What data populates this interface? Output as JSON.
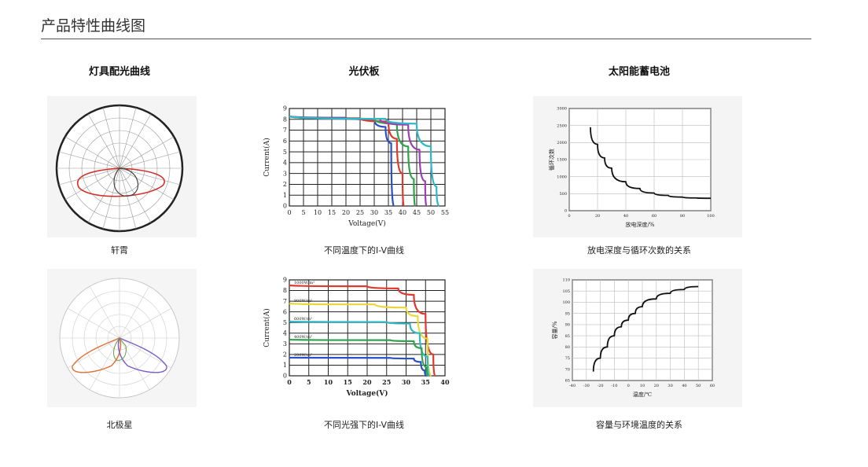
{
  "page": {
    "title": "产品特性曲线图"
  },
  "columns": [
    {
      "heading": "灯具配光曲线"
    },
    {
      "heading": "光伏板"
    },
    {
      "heading": "太阳能蓄电池"
    }
  ],
  "captions": {
    "polar1": "轩霄",
    "polar2": "北极星",
    "iv_temp": "不同温度下的I-V曲线",
    "iv_light": "不同光强下的I-V曲线",
    "cycle": "放电深度与循环次数的关系",
    "capacity": "容量与环境温度的关系"
  },
  "colors": {
    "red": "#e03a2f",
    "blue": "#2a4fc6",
    "green": "#2fa34a",
    "purple": "#9b3fb5",
    "cyan": "#2fb8c6",
    "yellow": "#e8d83a",
    "orange": "#e0703a"
  },
  "chart_data": [
    {
      "type": "line",
      "title": "不同温度下的I-V曲线",
      "xlabel": "Voltage(V)",
      "ylabel": "Current(A)",
      "xlim": [
        0,
        55
      ],
      "ylim": [
        0,
        9
      ],
      "x_ticks": [
        "0",
        "5",
        "10",
        "15",
        "20",
        "25",
        "30",
        "35",
        "40",
        "45",
        "50",
        "55"
      ],
      "y_ticks": [
        "0",
        "1",
        "2",
        "3",
        "4",
        "5",
        "6",
        "7",
        "8",
        "9"
      ],
      "series": [
        {
          "color": "#2a4fc6",
          "points": [
            [
              0,
              8.3
            ],
            [
              20,
              8.15
            ],
            [
              30,
              8.0
            ],
            [
              34,
              7.3
            ],
            [
              36,
              5.8
            ],
            [
              37,
              0
            ]
          ]
        },
        {
          "color": "#e03a2f",
          "points": [
            [
              0,
              8.3
            ],
            [
              25,
              8.1
            ],
            [
              35,
              7.8
            ],
            [
              38,
              6.2
            ],
            [
              40,
              3.0
            ],
            [
              40.5,
              0
            ]
          ]
        },
        {
          "color": "#2fa34a",
          "points": [
            [
              0,
              8.3
            ],
            [
              30,
              8.05
            ],
            [
              38,
              7.6
            ],
            [
              42,
              5.5
            ],
            [
              44,
              2.5
            ],
            [
              44.5,
              0
            ]
          ]
        },
        {
          "color": "#9b3fb5",
          "points": [
            [
              0,
              8.3
            ],
            [
              32,
              8.05
            ],
            [
              42,
              7.5
            ],
            [
              46,
              5.2
            ],
            [
              48,
              2.3
            ],
            [
              48.5,
              0
            ]
          ]
        },
        {
          "color": "#2fb8c6",
          "points": [
            [
              0,
              8.3
            ],
            [
              34,
              8.05
            ],
            [
              45,
              7.6
            ],
            [
              50,
              5.5
            ],
            [
              52,
              1.8
            ],
            [
              53,
              0
            ]
          ]
        }
      ]
    },
    {
      "type": "line",
      "title": "不同光强下的I-V曲线",
      "xlabel": "Voltage(V)",
      "ylabel": "Current(A)",
      "xlim": [
        0,
        40
      ],
      "ylim": [
        0,
        9
      ],
      "x_ticks": [
        "0",
        "5",
        "10",
        "15",
        "20",
        "25",
        "30",
        "35",
        "40"
      ],
      "y_ticks": [
        "0",
        "1",
        "2",
        "3",
        "4",
        "5",
        "6",
        "7",
        "8",
        "9"
      ],
      "series": [
        {
          "name": "1000W/m²",
          "color": "#e03a2f",
          "points": [
            [
              0,
              8.5
            ],
            [
              20,
              8.4
            ],
            [
              28,
              8.2
            ],
            [
              32,
              7.6
            ],
            [
              35,
              5.8
            ],
            [
              37,
              2.0
            ],
            [
              37.5,
              0
            ]
          ]
        },
        {
          "name": "800W/m²",
          "color": "#e8d83a",
          "points": [
            [
              0,
              6.8
            ],
            [
              22,
              6.7
            ],
            [
              30,
              6.4
            ],
            [
              33,
              5.6
            ],
            [
              35.5,
              3.5
            ],
            [
              36.5,
              0
            ]
          ]
        },
        {
          "name": "600W/m²",
          "color": "#2fb8c6",
          "points": [
            [
              0,
              5.1
            ],
            [
              25,
              5.05
            ],
            [
              31,
              4.9
            ],
            [
              33.5,
              4.0
            ],
            [
              35.5,
              1.8
            ],
            [
              36,
              0
            ]
          ]
        },
        {
          "name": "400W/m²",
          "color": "#2fa34a",
          "points": [
            [
              0,
              3.4
            ],
            [
              26,
              3.35
            ],
            [
              32,
              3.25
            ],
            [
              34,
              2.6
            ],
            [
              35.3,
              0.8
            ],
            [
              35.6,
              0
            ]
          ]
        },
        {
          "name": "200W/m²",
          "color": "#2a4fc6",
          "points": [
            [
              0,
              1.7
            ],
            [
              26,
              1.68
            ],
            [
              32,
              1.62
            ],
            [
              33.8,
              1.3
            ],
            [
              34.8,
              0.5
            ],
            [
              35.2,
              0
            ]
          ]
        }
      ]
    },
    {
      "type": "line",
      "title": "放电深度与循环次数的关系",
      "xlabel": "放电深度/%",
      "ylabel": "循环次数",
      "xlim": [
        0,
        100
      ],
      "ylim": [
        0,
        3000
      ],
      "x_ticks": [
        "0",
        "20",
        "40",
        "60",
        "80",
        "100"
      ],
      "y_ticks": [
        "0",
        "500",
        "1000",
        "1500",
        "2000",
        "2500",
        "3000"
      ],
      "series": [
        {
          "color": "#111111",
          "points": [
            [
              15,
              2450
            ],
            [
              20,
              1950
            ],
            [
              25,
              1550
            ],
            [
              30,
              1250
            ],
            [
              40,
              850
            ],
            [
              50,
              650
            ],
            [
              60,
              520
            ],
            [
              70,
              450
            ],
            [
              80,
              400
            ],
            [
              90,
              375
            ],
            [
              100,
              365
            ]
          ]
        }
      ]
    },
    {
      "type": "line",
      "title": "容量与环境温度的关系",
      "xlabel": "温度/℃",
      "ylabel": "容量/%",
      "xlim": [
        -40,
        60
      ],
      "ylim": [
        65,
        110
      ],
      "x_ticks": [
        "-40",
        "-30",
        "-20",
        "-10",
        "0",
        "10",
        "20",
        "30",
        "40",
        "50",
        "60"
      ],
      "y_ticks": [
        "65",
        "70",
        "75",
        "80",
        "85",
        "90",
        "95",
        "100",
        "105",
        "110"
      ],
      "series": [
        {
          "color": "#111111",
          "points": [
            [
              -25,
              69
            ],
            [
              -20,
              75
            ],
            [
              -15,
              80
            ],
            [
              -10,
              85
            ],
            [
              -5,
              89
            ],
            [
              0,
              92
            ],
            [
              5,
              95
            ],
            [
              10,
              98
            ],
            [
              20,
              101.5
            ],
            [
              30,
              104
            ],
            [
              40,
              105.7
            ],
            [
              50,
              107
            ]
          ]
        }
      ]
    }
  ]
}
